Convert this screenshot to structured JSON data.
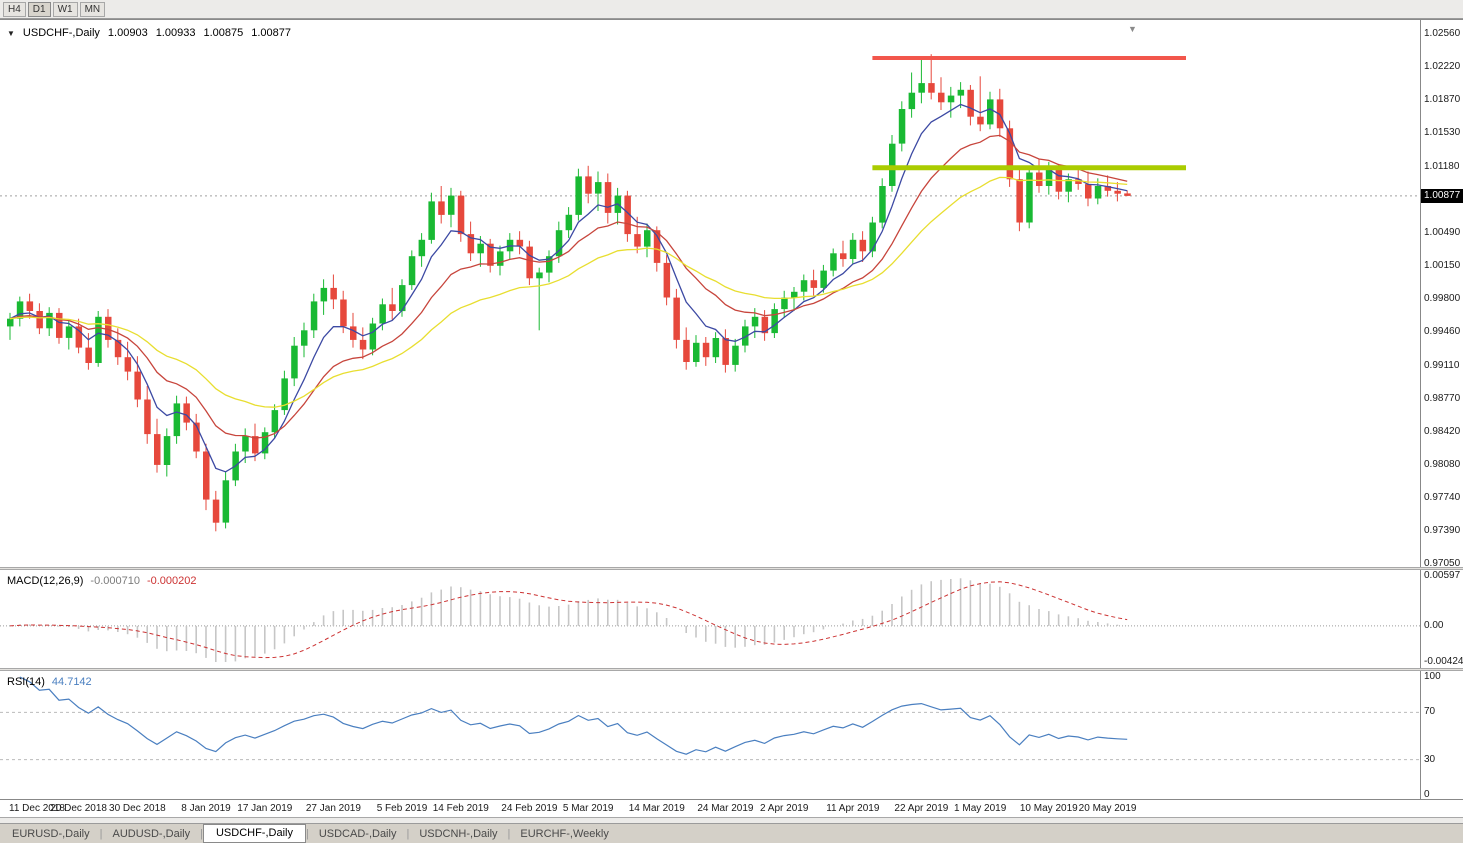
{
  "window": {
    "toolbar": {
      "timeframes": [
        {
          "label": "H4",
          "active": false
        },
        {
          "label": "D1",
          "active": true
        },
        {
          "label": "W1",
          "active": false
        },
        {
          "label": "MN",
          "active": false
        }
      ]
    },
    "tabs": [
      {
        "label": "EURUSD-,Daily",
        "active": false
      },
      {
        "label": "AUDUSD-,Daily",
        "active": false
      },
      {
        "label": "USDCHF-,Daily",
        "active": true
      },
      {
        "label": "USDCAD-,Daily",
        "active": false
      },
      {
        "label": "USDCNH-,Daily",
        "active": false
      },
      {
        "label": "EURCHF-,Weekly",
        "active": false
      }
    ]
  },
  "chart_data": {
    "type": "candlestick",
    "title": "USDCHF-,Daily",
    "symbol": "USDCHF-",
    "timeframe": "Daily",
    "ohlc": {
      "open": "1.00903",
      "high": "1.00933",
      "low": "1.00875",
      "close": "1.00877"
    },
    "current_price": "1.00877",
    "ylim": [
      0.9705,
      1.0256
    ],
    "price_axis_labels": [
      "1.02560",
      "1.02220",
      "1.01870",
      "1.01530",
      "1.01180",
      "1.00490",
      "1.00150",
      "0.99800",
      "0.99460",
      "0.99110",
      "0.98770",
      "0.98420",
      "0.98080",
      "0.97740",
      "0.97390",
      "0.97050"
    ],
    "colors": {
      "up": "#19b933",
      "down": "#e6483c",
      "ma_fast": "#3c49a3",
      "ma_mid": "#c7453c",
      "ma_slow": "#e8de30",
      "macd_hist": "#c6c6c6",
      "macd_signal": "#cc3333",
      "rsi": "#4a7fc0",
      "price_line": "#a0a0a0",
      "level_dash": "#bbbbbb"
    },
    "candles": [
      [
        0.9952,
        0.9966,
        0.9938,
        0.996
      ],
      [
        0.996,
        0.9983,
        0.9952,
        0.9978
      ],
      [
        0.9978,
        0.9986,
        0.996,
        0.9968
      ],
      [
        0.9968,
        0.9976,
        0.9944,
        0.995
      ],
      [
        0.995,
        0.9972,
        0.9942,
        0.9966
      ],
      [
        0.9966,
        0.9971,
        0.9934,
        0.994
      ],
      [
        0.994,
        0.9958,
        0.9928,
        0.9952
      ],
      [
        0.9952,
        0.996,
        0.9924,
        0.993
      ],
      [
        0.993,
        0.9945,
        0.9907,
        0.9914
      ],
      [
        0.9914,
        0.9968,
        0.991,
        0.9962
      ],
      [
        0.9962,
        0.997,
        0.993,
        0.9938
      ],
      [
        0.9938,
        0.995,
        0.9912,
        0.992
      ],
      [
        0.992,
        0.9936,
        0.9896,
        0.9905
      ],
      [
        0.9905,
        0.9921,
        0.9868,
        0.9876
      ],
      [
        0.9876,
        0.989,
        0.983,
        0.984
      ],
      [
        0.984,
        0.9856,
        0.98,
        0.9808
      ],
      [
        0.9808,
        0.9846,
        0.9796,
        0.9838
      ],
      [
        0.9838,
        0.988,
        0.983,
        0.9872
      ],
      [
        0.9872,
        0.9879,
        0.9844,
        0.9852
      ],
      [
        0.9852,
        0.9861,
        0.9815,
        0.9822
      ],
      [
        0.9822,
        0.983,
        0.9761,
        0.9772
      ],
      [
        0.9772,
        0.9781,
        0.9739,
        0.9748
      ],
      [
        0.9748,
        0.9801,
        0.9742,
        0.9792
      ],
      [
        0.9792,
        0.983,
        0.9786,
        0.9822
      ],
      [
        0.9822,
        0.9846,
        0.981,
        0.9838
      ],
      [
        0.9838,
        0.9851,
        0.9812,
        0.982
      ],
      [
        0.982,
        0.9847,
        0.9814,
        0.9842
      ],
      [
        0.9842,
        0.9871,
        0.9836,
        0.9865
      ],
      [
        0.9865,
        0.9906,
        0.986,
        0.9898
      ],
      [
        0.9898,
        0.9941,
        0.989,
        0.9932
      ],
      [
        0.9932,
        0.9956,
        0.992,
        0.9948
      ],
      [
        0.9948,
        0.9986,
        0.994,
        0.9978
      ],
      [
        0.9978,
        1.0001,
        0.9964,
        0.9992
      ],
      [
        0.9992,
        1.0006,
        0.997,
        0.998
      ],
      [
        0.998,
        0.9989,
        0.9945,
        0.9952
      ],
      [
        0.9952,
        0.9966,
        0.993,
        0.9938
      ],
      [
        0.9938,
        0.9951,
        0.9918,
        0.9928
      ],
      [
        0.9928,
        0.9961,
        0.9922,
        0.9955
      ],
      [
        0.9955,
        0.9981,
        0.9948,
        0.9975
      ],
      [
        0.9975,
        0.9992,
        0.9959,
        0.9968
      ],
      [
        0.9968,
        1.0001,
        0.9962,
        0.9995
      ],
      [
        0.9995,
        1.0031,
        0.999,
        1.0025
      ],
      [
        1.0025,
        1.0049,
        1.0014,
        1.0042
      ],
      [
        1.0042,
        1.0091,
        1.0038,
        1.0082
      ],
      [
        1.0082,
        1.0098,
        1.0059,
        1.0068
      ],
      [
        1.0068,
        1.0096,
        1.0055,
        1.0088
      ],
      [
        1.0088,
        1.0093,
        1.004,
        1.0048
      ],
      [
        1.0048,
        1.0061,
        1.002,
        1.0028
      ],
      [
        1.0028,
        1.0046,
        1.0014,
        1.0038
      ],
      [
        1.0038,
        1.0043,
        1.0008,
        1.0015
      ],
      [
        1.0015,
        1.0036,
        1.0005,
        1.003
      ],
      [
        1.003,
        1.0049,
        1.0022,
        1.0042
      ],
      [
        1.0042,
        1.0051,
        1.0027,
        1.0035
      ],
      [
        1.0035,
        1.0041,
        0.9995,
        1.0002
      ],
      [
        1.0002,
        1.0013,
        0.9948,
        1.0008
      ],
      [
        1.0008,
        1.0031,
        0.9998,
        1.0025
      ],
      [
        1.0025,
        1.0061,
        1.0018,
        1.0052
      ],
      [
        1.0052,
        1.0076,
        1.0044,
        1.0068
      ],
      [
        1.0068,
        1.0116,
        1.0062,
        1.0108
      ],
      [
        1.0108,
        1.0119,
        1.008,
        1.009
      ],
      [
        1.009,
        1.0113,
        1.0072,
        1.0102
      ],
      [
        1.0102,
        1.0111,
        1.0059,
        1.007
      ],
      [
        1.007,
        1.0096,
        1.0058,
        1.0088
      ],
      [
        1.0088,
        1.0093,
        1.004,
        1.0048
      ],
      [
        1.0048,
        1.0066,
        1.0028,
        1.0035
      ],
      [
        1.0035,
        1.0059,
        1.0024,
        1.0052
      ],
      [
        1.0052,
        1.0056,
        1.0009,
        1.0018
      ],
      [
        1.0018,
        1.0026,
        0.9974,
        0.9982
      ],
      [
        0.9982,
        0.9991,
        0.9929,
        0.9938
      ],
      [
        0.9938,
        0.9951,
        0.9907,
        0.9915
      ],
      [
        0.9915,
        0.9943,
        0.991,
        0.9935
      ],
      [
        0.9935,
        0.9941,
        0.9911,
        0.992
      ],
      [
        0.992,
        0.9946,
        0.9914,
        0.994
      ],
      [
        0.994,
        0.9949,
        0.9904,
        0.9912
      ],
      [
        0.9912,
        0.9939,
        0.9905,
        0.9932
      ],
      [
        0.9932,
        0.9959,
        0.9925,
        0.9952
      ],
      [
        0.9952,
        0.9971,
        0.994,
        0.9962
      ],
      [
        0.9962,
        0.9969,
        0.9937,
        0.9945
      ],
      [
        0.9945,
        0.9976,
        0.994,
        0.997
      ],
      [
        0.997,
        0.9989,
        0.9961,
        0.9982
      ],
      [
        0.9982,
        0.9993,
        0.9968,
        0.9988
      ],
      [
        0.9988,
        1.0006,
        0.9979,
        1.0
      ],
      [
        1.0,
        1.0011,
        0.9984,
        0.9992
      ],
      [
        0.9992,
        1.0016,
        0.9987,
        1.001
      ],
      [
        1.001,
        1.0033,
        1.0004,
        1.0028
      ],
      [
        1.0028,
        1.0041,
        1.0014,
        1.0022
      ],
      [
        1.0022,
        1.0049,
        1.0017,
        1.0042
      ],
      [
        1.0042,
        1.0051,
        1.0019,
        1.003
      ],
      [
        1.003,
        1.0066,
        1.0024,
        1.006
      ],
      [
        1.006,
        1.0106,
        1.0054,
        1.0098
      ],
      [
        1.0098,
        1.0151,
        1.0092,
        1.0142
      ],
      [
        1.0142,
        1.0186,
        1.0134,
        1.0178
      ],
      [
        1.0178,
        1.0216,
        1.0169,
        1.0195
      ],
      [
        1.0195,
        1.0229,
        1.0184,
        1.0205
      ],
      [
        1.0205,
        1.0235,
        1.0188,
        1.0195
      ],
      [
        1.0195,
        1.0211,
        1.0177,
        1.0185
      ],
      [
        1.0185,
        1.0201,
        1.0169,
        1.0192
      ],
      [
        1.0192,
        1.0206,
        1.0179,
        1.0198
      ],
      [
        1.0198,
        1.0203,
        1.0161,
        1.017
      ],
      [
        1.017,
        1.0212,
        1.0155,
        1.0162
      ],
      [
        1.0162,
        1.0196,
        1.0157,
        1.0188
      ],
      [
        1.0188,
        1.0199,
        1.0149,
        1.0158
      ],
      [
        1.0158,
        1.0166,
        1.0097,
        1.0105
      ],
      [
        1.0105,
        1.0116,
        1.0051,
        1.006
      ],
      [
        1.006,
        1.0119,
        1.0054,
        1.0112
      ],
      [
        1.0112,
        1.0126,
        1.0091,
        1.0098
      ],
      [
        1.0098,
        1.0123,
        1.0089,
        1.0115
      ],
      [
        1.0115,
        1.0121,
        1.0084,
        1.0092
      ],
      [
        1.0092,
        1.0111,
        1.0081,
        1.0105
      ],
      [
        1.0105,
        1.0119,
        1.0094,
        1.01
      ],
      [
        1.01,
        1.0113,
        1.0077,
        1.0085
      ],
      [
        1.0085,
        1.0106,
        1.0079,
        1.0098
      ],
      [
        1.0098,
        1.0109,
        1.0087,
        1.0093
      ],
      [
        1.0093,
        1.0102,
        1.0082,
        1.009
      ],
      [
        1.00903,
        1.00933,
        1.00875,
        1.00877
      ]
    ],
    "x_labels": [
      {
        "index": 0,
        "text": "11 Dec 2018"
      },
      {
        "index": 7,
        "text": "20 Dec 2018"
      },
      {
        "index": 13,
        "text": "30 Dec 2018"
      },
      {
        "index": 20,
        "text": "8 Jan 2019"
      },
      {
        "index": 26,
        "text": "17 Jan 2019"
      },
      {
        "index": 33,
        "text": "27 Jan 2019"
      },
      {
        "index": 40,
        "text": "5 Feb 2019"
      },
      {
        "index": 46,
        "text": "14 Feb 2019"
      },
      {
        "index": 53,
        "text": "24 Feb 2019"
      },
      {
        "index": 59,
        "text": "5 Mar 2019"
      },
      {
        "index": 66,
        "text": "14 Mar 2019"
      },
      {
        "index": 73,
        "text": "24 Mar 2019"
      },
      {
        "index": 79,
        "text": "2 Apr 2019"
      },
      {
        "index": 86,
        "text": "11 Apr 2019"
      },
      {
        "index": 93,
        "text": "22 Apr 2019"
      },
      {
        "index": 99,
        "text": "1 May 2019"
      },
      {
        "index": 106,
        "text": "10 May 2019"
      },
      {
        "index": 112,
        "text": "20 May 2019"
      }
    ],
    "overlays": {
      "moving_averages": [
        {
          "name": "ma-fast",
          "period": 6,
          "color": "#3c49a3"
        },
        {
          "name": "ma-mid",
          "period": 14,
          "color": "#c7453c"
        },
        {
          "name": "ma-slow",
          "period": 28,
          "color": "#e8de30"
        }
      ],
      "hlines": [
        {
          "name": "resistance-line",
          "price": 1.0231,
          "from_index": 88,
          "to_index": 120,
          "width": 4,
          "color": "#f2564c"
        },
        {
          "name": "support-line",
          "price": 1.0117,
          "from_index": 88,
          "to_index": 120,
          "width": 5,
          "color": "#aacc00"
        }
      ]
    },
    "indicators": [
      {
        "id": "macd",
        "label": "MACD(12,26,9)",
        "main_value": "-0.000710",
        "signal_value": "-0.000202",
        "fast": 12,
        "slow": 26,
        "signal_period": 9,
        "scale": [
          -0.00424,
          0.00597
        ],
        "axis_labels": [
          {
            "text": "0.00597",
            "value": 0.00597
          },
          {
            "text": "0.00",
            "value": 0
          },
          {
            "text": "-0.00424",
            "value": -0.00424
          }
        ]
      },
      {
        "id": "rsi",
        "label": "RSI(14)",
        "value": "44.7142",
        "period": 14,
        "levels": [
          70,
          30
        ],
        "scale": [
          0,
          100
        ],
        "axis_labels": [
          {
            "text": "100",
            "value": 100
          },
          {
            "text": "70",
            "value": 70
          },
          {
            "text": "30",
            "value": 30
          },
          {
            "text": "0",
            "value": 0
          }
        ]
      }
    ]
  }
}
